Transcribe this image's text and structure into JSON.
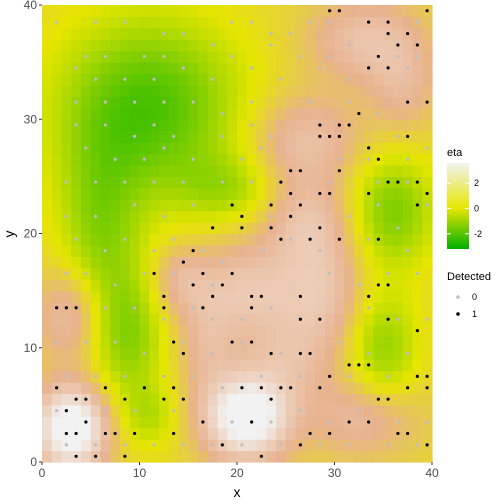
{
  "chart_data": {
    "type": "heatmap",
    "xlabel": "x",
    "ylabel": "y",
    "xlim": [
      0,
      40
    ],
    "ylim": [
      0,
      40
    ],
    "x_ticks": [
      "0",
      "10",
      "20",
      "30",
      "40"
    ],
    "y_ticks": [
      "0",
      "10",
      "20",
      "30",
      "40"
    ],
    "raster_grid": {
      "nx": 40,
      "ny": 40,
      "cell_size": 1
    },
    "fill": {
      "name": "eta",
      "low_color": "#00b000",
      "mid_color": "#e6e600",
      "high_color": "#f2f2f2",
      "limits": [
        -3.2,
        3.6
      ],
      "breaks": [
        -2,
        0,
        2
      ],
      "break_labels": [
        "-2",
        "0",
        "2"
      ],
      "features": [
        {
          "x": 11,
          "y": 31,
          "amp": -2.6,
          "sx": 6.5,
          "sy": 5.5
        },
        {
          "x": 6,
          "y": 20,
          "amp": -1.6,
          "sx": 3,
          "sy": 6
        },
        {
          "x": 9,
          "y": 11,
          "amp": -1.6,
          "sx": 2.5,
          "sy": 4
        },
        {
          "x": 11,
          "y": 4,
          "amp": -1.0,
          "sx": 2,
          "sy": 2
        },
        {
          "x": 19,
          "y": 24,
          "amp": -1.1,
          "sx": 3.5,
          "sy": 2
        },
        {
          "x": 36,
          "y": 22,
          "amp": -1.9,
          "sx": 3,
          "sy": 3.5
        },
        {
          "x": 35,
          "y": 10,
          "amp": -1.6,
          "sx": 2.5,
          "sy": 3.5
        },
        {
          "x": 3,
          "y": 3,
          "amp": 4.0,
          "sx": 2.5,
          "sy": 2.5
        },
        {
          "x": 21,
          "y": 4,
          "amp": 4.0,
          "sx": 3,
          "sy": 2.5
        },
        {
          "x": 3,
          "y": 13,
          "amp": 1.5,
          "sx": 2.5,
          "sy": 3
        },
        {
          "x": 21,
          "y": 15,
          "amp": 1.6,
          "sx": 4.5,
          "sy": 3
        },
        {
          "x": 29,
          "y": 15,
          "amp": 1.3,
          "sx": 3,
          "sy": 4
        },
        {
          "x": 27,
          "y": 28,
          "amp": 1.4,
          "sx": 4,
          "sy": 3
        },
        {
          "x": 27,
          "y": 21,
          "amp": 1.2,
          "sx": 3,
          "sy": 2.5
        },
        {
          "x": 33,
          "y": 37,
          "amp": 1.4,
          "sx": 4,
          "sy": 2.5
        },
        {
          "x": 37,
          "y": 33,
          "amp": 1.0,
          "sx": 2.5,
          "sy": 3
        },
        {
          "x": 33,
          "y": 4,
          "amp": 1.2,
          "sx": 4,
          "sy": 2.5
        },
        {
          "x": 25,
          "y": 9,
          "amp": 1.0,
          "sx": 3,
          "sy": 2.5
        },
        {
          "x": 14,
          "y": 16,
          "amp": 0.9,
          "sx": 2,
          "sy": 2
        },
        {
          "x": 17,
          "y": 10,
          "amp": 0.9,
          "sx": 2,
          "sy": 3
        }
      ]
    },
    "points": {
      "name": "Detected",
      "legend_labels": [
        "0",
        "1"
      ],
      "colors": {
        "0": "#bebebe",
        "1": "#000000"
      },
      "detected_0": [
        [
          1,
          38
        ],
        [
          5,
          38
        ],
        [
          8,
          38
        ],
        [
          12,
          37
        ],
        [
          14,
          37
        ],
        [
          19,
          38
        ],
        [
          21,
          38
        ],
        [
          23,
          37
        ],
        [
          25,
          37
        ],
        [
          27,
          38
        ],
        [
          29,
          38
        ],
        [
          38,
          38
        ],
        [
          4,
          35
        ],
        [
          6,
          35
        ],
        [
          10,
          35
        ],
        [
          12,
          35
        ],
        [
          17,
          36
        ],
        [
          19,
          35
        ],
        [
          23,
          36
        ],
        [
          26,
          35
        ],
        [
          29,
          35
        ],
        [
          31,
          36
        ],
        [
          36,
          35
        ],
        [
          38,
          35
        ],
        [
          3,
          34
        ],
        [
          5,
          33
        ],
        [
          8,
          33
        ],
        [
          11,
          33
        ],
        [
          14,
          34
        ],
        [
          17,
          33
        ],
        [
          21,
          34
        ],
        [
          24,
          33
        ],
        [
          28,
          34
        ],
        [
          31,
          33
        ],
        [
          37,
          34
        ],
        [
          3,
          31
        ],
        [
          6,
          31
        ],
        [
          9,
          31
        ],
        [
          12,
          31
        ],
        [
          15,
          31
        ],
        [
          18,
          30
        ],
        [
          21,
          31
        ],
        [
          27,
          31
        ],
        [
          31,
          31
        ],
        [
          34,
          30
        ],
        [
          37,
          31
        ],
        [
          3,
          29
        ],
        [
          6,
          29
        ],
        [
          9,
          28
        ],
        [
          11,
          29
        ],
        [
          13,
          28
        ],
        [
          18,
          28
        ],
        [
          21,
          29
        ],
        [
          23,
          28
        ],
        [
          36,
          28
        ],
        [
          39,
          27
        ],
        [
          4,
          27
        ],
        [
          7,
          26
        ],
        [
          10,
          26
        ],
        [
          12,
          27
        ],
        [
          15,
          26
        ],
        [
          20,
          26
        ],
        [
          22,
          27
        ],
        [
          30,
          26
        ],
        [
          33,
          26
        ],
        [
          37,
          26
        ],
        [
          2,
          24
        ],
        [
          5,
          24
        ],
        [
          8,
          24
        ],
        [
          11,
          24
        ],
        [
          14,
          24
        ],
        [
          18,
          24
        ],
        [
          21,
          24
        ],
        [
          24,
          24
        ],
        [
          29,
          24
        ],
        [
          34,
          24
        ],
        [
          37,
          24
        ],
        [
          39,
          22
        ],
        [
          2,
          21
        ],
        [
          5,
          21
        ],
        [
          9,
          22
        ],
        [
          12,
          21
        ],
        [
          15,
          22
        ],
        [
          20,
          21
        ],
        [
          23,
          21
        ],
        [
          31,
          21
        ],
        [
          34,
          22
        ],
        [
          36,
          20
        ],
        [
          3,
          19
        ],
        [
          6,
          18
        ],
        [
          8,
          19
        ],
        [
          11,
          18
        ],
        [
          13,
          19
        ],
        [
          16,
          18
        ],
        [
          18,
          17
        ],
        [
          22,
          18
        ],
        [
          25,
          19
        ],
        [
          28,
          18
        ],
        [
          33,
          19
        ],
        [
          37,
          18
        ],
        [
          2,
          16
        ],
        [
          4,
          16
        ],
        [
          7,
          15
        ],
        [
          10,
          16
        ],
        [
          13,
          16
        ],
        [
          17,
          15
        ],
        [
          29,
          16
        ],
        [
          32,
          15
        ],
        [
          35,
          16
        ],
        [
          38,
          16
        ],
        [
          2,
          13
        ],
        [
          6,
          13
        ],
        [
          9,
          13
        ],
        [
          12,
          12
        ],
        [
          15,
          13
        ],
        [
          17,
          12
        ],
        [
          20,
          12
        ],
        [
          23,
          13
        ],
        [
          26,
          12
        ],
        [
          33,
          13
        ],
        [
          36,
          12
        ],
        [
          39,
          12
        ],
        [
          1,
          10
        ],
        [
          4,
          10
        ],
        [
          7,
          10
        ],
        [
          10,
          9
        ],
        [
          14,
          10
        ],
        [
          17,
          9
        ],
        [
          20,
          10
        ],
        [
          24,
          9
        ],
        [
          30,
          10
        ],
        [
          33,
          9
        ],
        [
          37,
          9
        ],
        [
          2,
          7
        ],
        [
          5,
          7
        ],
        [
          8,
          7
        ],
        [
          12,
          7
        ],
        [
          15,
          7
        ],
        [
          18,
          6
        ],
        [
          22,
          7
        ],
        [
          26,
          7
        ],
        [
          28,
          6
        ],
        [
          31,
          7
        ],
        [
          35,
          7
        ],
        [
          39,
          6
        ],
        [
          1,
          4
        ],
        [
          6,
          4
        ],
        [
          9,
          4
        ],
        [
          13,
          4
        ],
        [
          16,
          3
        ],
        [
          19,
          3
        ],
        [
          23,
          3
        ],
        [
          26,
          4
        ],
        [
          29,
          3
        ],
        [
          32,
          4
        ],
        [
          36,
          3
        ],
        [
          39,
          3
        ],
        [
          2,
          1
        ],
        [
          5,
          1
        ],
        [
          8,
          1
        ],
        [
          11,
          1
        ],
        [
          14,
          1
        ],
        [
          17,
          1
        ],
        [
          20,
          1
        ],
        [
          24,
          1
        ],
        [
          28,
          1
        ],
        [
          31,
          1
        ],
        [
          35,
          1
        ],
        [
          38,
          1
        ]
      ],
      "detected_1": [
        [
          39,
          39
        ],
        [
          29,
          39
        ],
        [
          30,
          39
        ],
        [
          33,
          38
        ],
        [
          35,
          38
        ],
        [
          35,
          37
        ],
        [
          37,
          37
        ],
        [
          38,
          36
        ],
        [
          36,
          36
        ],
        [
          34,
          35
        ],
        [
          33,
          34
        ],
        [
          35,
          34
        ],
        [
          39,
          31
        ],
        [
          37,
          31
        ],
        [
          31,
          29
        ],
        [
          30,
          29
        ],
        [
          32,
          30
        ],
        [
          28,
          29
        ],
        [
          28,
          28
        ],
        [
          29,
          28
        ],
        [
          30,
          28
        ],
        [
          37,
          28
        ],
        [
          33,
          27
        ],
        [
          34,
          26
        ],
        [
          30,
          25
        ],
        [
          25,
          25
        ],
        [
          26,
          25
        ],
        [
          24,
          24
        ],
        [
          35,
          24
        ],
        [
          36,
          24
        ],
        [
          38,
          24
        ],
        [
          25,
          23
        ],
        [
          28,
          23
        ],
        [
          29,
          23
        ],
        [
          33,
          23
        ],
        [
          39,
          23
        ],
        [
          19,
          22
        ],
        [
          23,
          22
        ],
        [
          26,
          22
        ],
        [
          38,
          22
        ],
        [
          20,
          21
        ],
        [
          25,
          21
        ],
        [
          23,
          20
        ],
        [
          28,
          20
        ],
        [
          24,
          19
        ],
        [
          27,
          19
        ],
        [
          30,
          19
        ],
        [
          34,
          19
        ],
        [
          17,
          20
        ],
        [
          20,
          20
        ],
        [
          15,
          18
        ],
        [
          14,
          17
        ],
        [
          16,
          16
        ],
        [
          19,
          16
        ],
        [
          17,
          14
        ],
        [
          21,
          14
        ],
        [
          22,
          14
        ],
        [
          26,
          14
        ],
        [
          33,
          14
        ],
        [
          11,
          16
        ],
        [
          15,
          15
        ],
        [
          18,
          15
        ],
        [
          34,
          15
        ],
        [
          35,
          15
        ],
        [
          12,
          14
        ],
        [
          12,
          13
        ],
        [
          16,
          13
        ],
        [
          1,
          13
        ],
        [
          2,
          13
        ],
        [
          3,
          13
        ],
        [
          21,
          13
        ],
        [
          26,
          12
        ],
        [
          28,
          12
        ],
        [
          35,
          12
        ],
        [
          38,
          11
        ],
        [
          13,
          10
        ],
        [
          19,
          10
        ],
        [
          21,
          10
        ],
        [
          14,
          9
        ],
        [
          23,
          9
        ],
        [
          26,
          9
        ],
        [
          27,
          9
        ],
        [
          31,
          8
        ],
        [
          32,
          8
        ],
        [
          33,
          8
        ],
        [
          29,
          7
        ],
        [
          38,
          7
        ],
        [
          39,
          7
        ],
        [
          25,
          6
        ],
        [
          28,
          6
        ],
        [
          37,
          6
        ],
        [
          6,
          6
        ],
        [
          10,
          6
        ],
        [
          13,
          6
        ],
        [
          20,
          6
        ],
        [
          22,
          6
        ],
        [
          24,
          6
        ],
        [
          39,
          6
        ],
        [
          1,
          6
        ],
        [
          3,
          5
        ],
        [
          4,
          5
        ],
        [
          8,
          5
        ],
        [
          12,
          5
        ],
        [
          14,
          5
        ],
        [
          23,
          5
        ],
        [
          34,
          5
        ],
        [
          35,
          5
        ],
        [
          2,
          4
        ],
        [
          4,
          3
        ],
        [
          16,
          3
        ],
        [
          21,
          3
        ],
        [
          31,
          3
        ],
        [
          33,
          3
        ],
        [
          2,
          2
        ],
        [
          3,
          2
        ],
        [
          6,
          2
        ],
        [
          7,
          2
        ],
        [
          9,
          2
        ],
        [
          13,
          2
        ],
        [
          27,
          2
        ],
        [
          29,
          2
        ],
        [
          36,
          2
        ],
        [
          37,
          2
        ],
        [
          18,
          1
        ],
        [
          26,
          1
        ],
        [
          39,
          1
        ],
        [
          3,
          0
        ],
        [
          5,
          0
        ],
        [
          8,
          0
        ],
        [
          22,
          0
        ]
      ]
    }
  }
}
